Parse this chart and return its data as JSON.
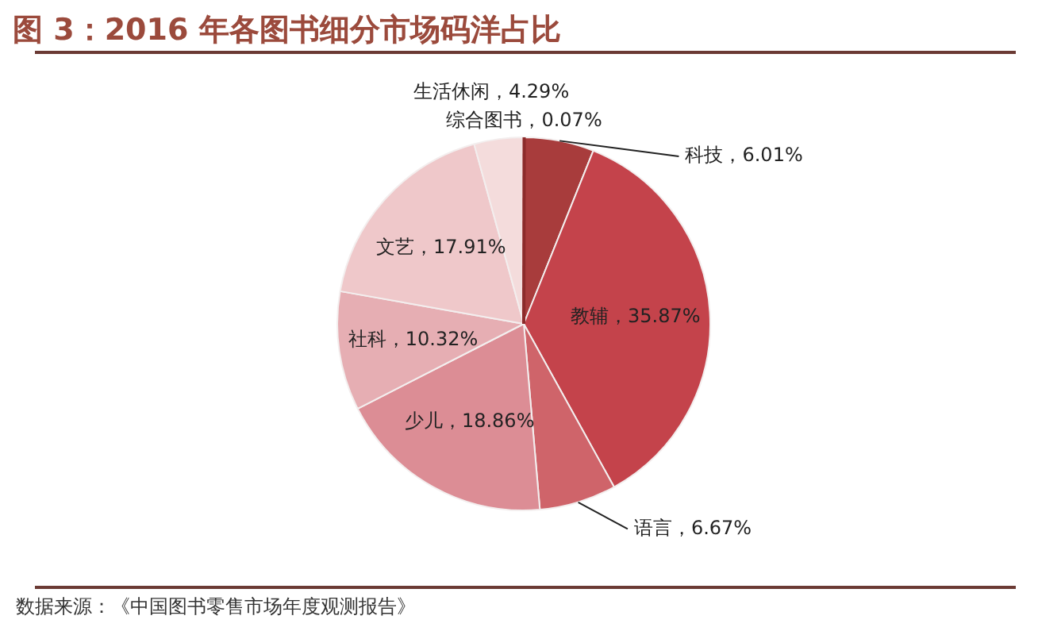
{
  "chart_data": {
    "type": "pie",
    "title": "图 3：2016 年各图书细分市场码洋占比",
    "categories": [
      "综合图书",
      "科技",
      "教辅",
      "语言",
      "少儿",
      "社科",
      "文艺",
      "生活休闲"
    ],
    "values": [
      0.07,
      6.01,
      35.87,
      6.67,
      18.86,
      10.32,
      17.91,
      4.29
    ],
    "value_labels": [
      "0.07%",
      "6.01%",
      "35.87%",
      "6.67%",
      "18.86%",
      "10.32%",
      "17.91%",
      "4.29%"
    ],
    "colors": [
      "#8c2b2b",
      "#a83c3c",
      "#c4434b",
      "#cf646a",
      "#dc8d95",
      "#e6aeb3",
      "#efc8ca",
      "#f4dcdc"
    ],
    "annotations": [
      "数据来源：《中国图书零售市场年度观测报告》"
    ]
  }
}
